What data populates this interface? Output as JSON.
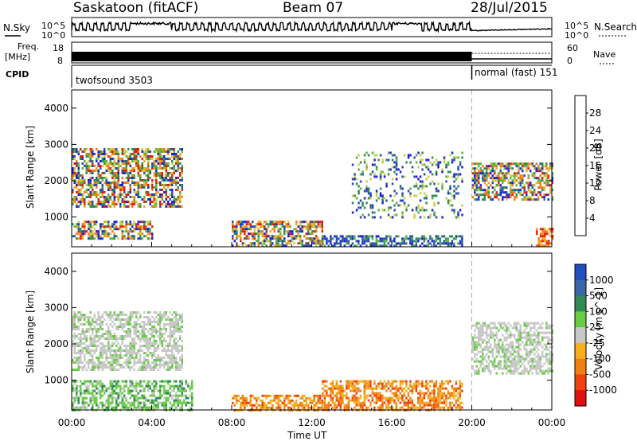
{
  "header": {
    "station": "Saskatoon (fitACF)",
    "beam": "Beam 07",
    "date": "28/Jul/2015"
  },
  "side_labels": {
    "nsky": "N.Sky",
    "nsearch": "N.Search",
    "freq_top": "Freq.",
    "freq_unit": "[MHz]",
    "nave": "Nave",
    "cpid": "CPID"
  },
  "strip_ticks": {
    "noise_left": [
      "10^5",
      "10^0"
    ],
    "noise_right": [
      "10^5",
      "10^0"
    ],
    "freq_left": [
      "18",
      "8"
    ],
    "nave_right": [
      "60",
      "0"
    ]
  },
  "cpid_modes": [
    {
      "name": "twofsound 3503",
      "start_hour": 0
    },
    {
      "name": "normal (fast) 151",
      "start_hour": 20
    }
  ],
  "colors": {
    "power_scale": [
      "#1f1fe0",
      "#2a4fb0",
      "#2f8a55",
      "#55b445",
      "#c7d04a",
      "#f4a020",
      "#f07a10",
      "#e02010"
    ],
    "velocity_scale": [
      "#2050c0",
      "#3a66a8",
      "#2f8a55",
      "#69cc45",
      "#c8c8c8",
      "#f5b020",
      "#f08010",
      "#f04010",
      "#e01010"
    ]
  },
  "chart_data": [
    {
      "type": "heatmap",
      "name": "power",
      "xlabel": "Time UT",
      "ylabel": "Slant Range [km]",
      "xlim": [
        0,
        24
      ],
      "ylim": [
        180,
        4500
      ],
      "y_ticks": [
        "1000",
        "2000",
        "3000",
        "4000"
      ],
      "colorbar_label": "Power [dB]",
      "colorbar_ticks": [
        "4",
        "8",
        "12",
        "16",
        "20",
        "24",
        "28"
      ],
      "regions": [
        {
          "t": [
            0,
            4
          ],
          "r": [
            400,
            900
          ],
          "level": "mixed",
          "values_db": [
            4,
            30
          ]
        },
        {
          "t": [
            0,
            5.5
          ],
          "r": [
            1300,
            2900
          ],
          "level": "mixed",
          "values_db": [
            4,
            24
          ]
        },
        {
          "t": [
            8,
            12.5
          ],
          "r": [
            200,
            900
          ],
          "level": "mixed",
          "values_db": [
            4,
            28
          ]
        },
        {
          "t": [
            12.5,
            19.5
          ],
          "r": [
            200,
            500
          ],
          "level": "low",
          "values_db": [
            4,
            12
          ]
        },
        {
          "t": [
            14,
            19.5
          ],
          "r": [
            1000,
            2800
          ],
          "level": "sparse",
          "values_db": [
            4,
            20
          ]
        },
        {
          "t": [
            20,
            24
          ],
          "r": [
            1500,
            2500
          ],
          "level": "mixed",
          "values_db": [
            4,
            24
          ]
        },
        {
          "t": [
            23.2,
            24
          ],
          "r": [
            200,
            700
          ],
          "level": "high",
          "values_db": [
            16,
            30
          ]
        }
      ]
    },
    {
      "type": "heatmap",
      "name": "velocity",
      "xlabel": "Time UT",
      "ylabel": "Slant Range [km]",
      "xlim": [
        0,
        24
      ],
      "ylim": [
        180,
        4500
      ],
      "x_ticks": [
        "00:00",
        "04:00",
        "08:00",
        "12:00",
        "16:00",
        "20:00",
        "00:00"
      ],
      "y_ticks": [
        "1000",
        "2000",
        "3000",
        "4000"
      ],
      "colorbar_label": "Velocity [m s^-1]",
      "colorbar_ticks": [
        "1000",
        "500",
        "100",
        "25",
        "-25",
        "-100",
        "-500",
        "-1000"
      ],
      "regions": [
        {
          "t": [
            0,
            5.5
          ],
          "r": [
            1300,
            2900
          ],
          "level": "ground",
          "values_ms": [
            -25,
            25
          ]
        },
        {
          "t": [
            0,
            6
          ],
          "r": [
            200,
            1000
          ],
          "level": "positive",
          "values_ms": [
            25,
            500
          ]
        },
        {
          "t": [
            8,
            12.5
          ],
          "r": [
            200,
            600
          ],
          "level": "negative",
          "values_ms": [
            -100,
            -25
          ]
        },
        {
          "t": [
            12.5,
            19.5
          ],
          "r": [
            200,
            1000
          ],
          "level": "negative",
          "values_ms": [
            -500,
            -25
          ]
        },
        {
          "t": [
            20,
            24
          ],
          "r": [
            1200,
            2600
          ],
          "level": "ground",
          "values_ms": [
            -25,
            25
          ]
        }
      ]
    }
  ],
  "time_axis_label": "Time UT"
}
